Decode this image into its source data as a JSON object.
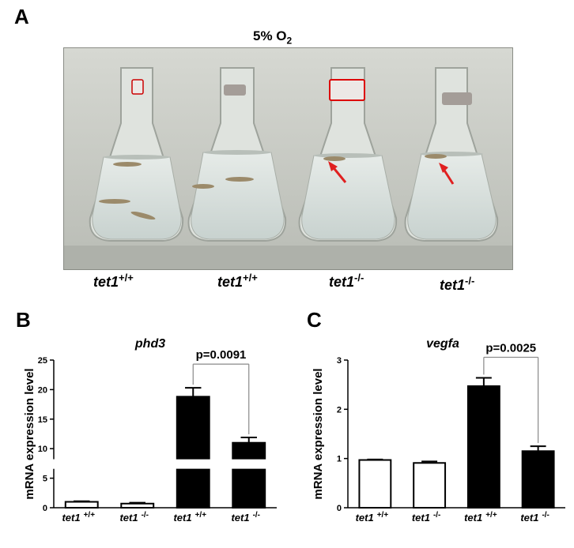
{
  "panels": {
    "a": {
      "letter": "A",
      "condition_title": "5% O",
      "condition_subscript": "2",
      "genotypes": [
        {
          "base": "tet1",
          "sup": "+/+"
        },
        {
          "base": "tet1",
          "sup": "+/+"
        },
        {
          "base": "tet1",
          "sup": "-/-"
        },
        {
          "base": "tet1",
          "sup": "-/-"
        }
      ],
      "arrow_color": "#e02020"
    },
    "b": {
      "letter": "B"
    },
    "c": {
      "letter": "C"
    }
  },
  "chart_data": [
    {
      "type": "bar",
      "title": "phd3",
      "ylabel": "mRNA  expression level",
      "ylim": [
        0,
        25
      ],
      "yticks": [
        "0",
        "5",
        "10",
        "15",
        "20",
        "25"
      ],
      "categories": [
        {
          "base": "tet1",
          "sup": "+/+"
        },
        {
          "base": "tet1",
          "sup": "-/-"
        },
        {
          "base": "tet1",
          "sup": "+/+"
        },
        {
          "base": "tet1",
          "sup": "-/-"
        }
      ],
      "values": [
        1.0,
        0.7,
        18.8,
        11.0
      ],
      "errors": [
        0.1,
        0.15,
        1.5,
        0.9
      ],
      "fills": [
        "#ffffff",
        "#ffffff",
        "#000000",
        "#000000"
      ],
      "axis_break": true,
      "annotation": {
        "text": "p=0.0091",
        "between": [
          2,
          3
        ]
      }
    },
    {
      "type": "bar",
      "title": "vegfa",
      "ylabel": "mRNA  expression level",
      "ylim": [
        0,
        3
      ],
      "yticks": [
        "0",
        "1",
        "2",
        "3"
      ],
      "categories": [
        {
          "base": "tet1",
          "sup": "+/+"
        },
        {
          "base": "tet1",
          "sup": "-/-"
        },
        {
          "base": "tet1",
          "sup": "+/+"
        },
        {
          "base": "tet1",
          "sup": "-/-"
        }
      ],
      "values": [
        0.97,
        0.91,
        2.47,
        1.15
      ],
      "errors": [
        0.01,
        0.03,
        0.17,
        0.1
      ],
      "fills": [
        "#ffffff",
        "#ffffff",
        "#000000",
        "#000000"
      ],
      "axis_break": false,
      "annotation": {
        "text": "p=0.0025",
        "between": [
          2,
          3
        ]
      }
    }
  ]
}
